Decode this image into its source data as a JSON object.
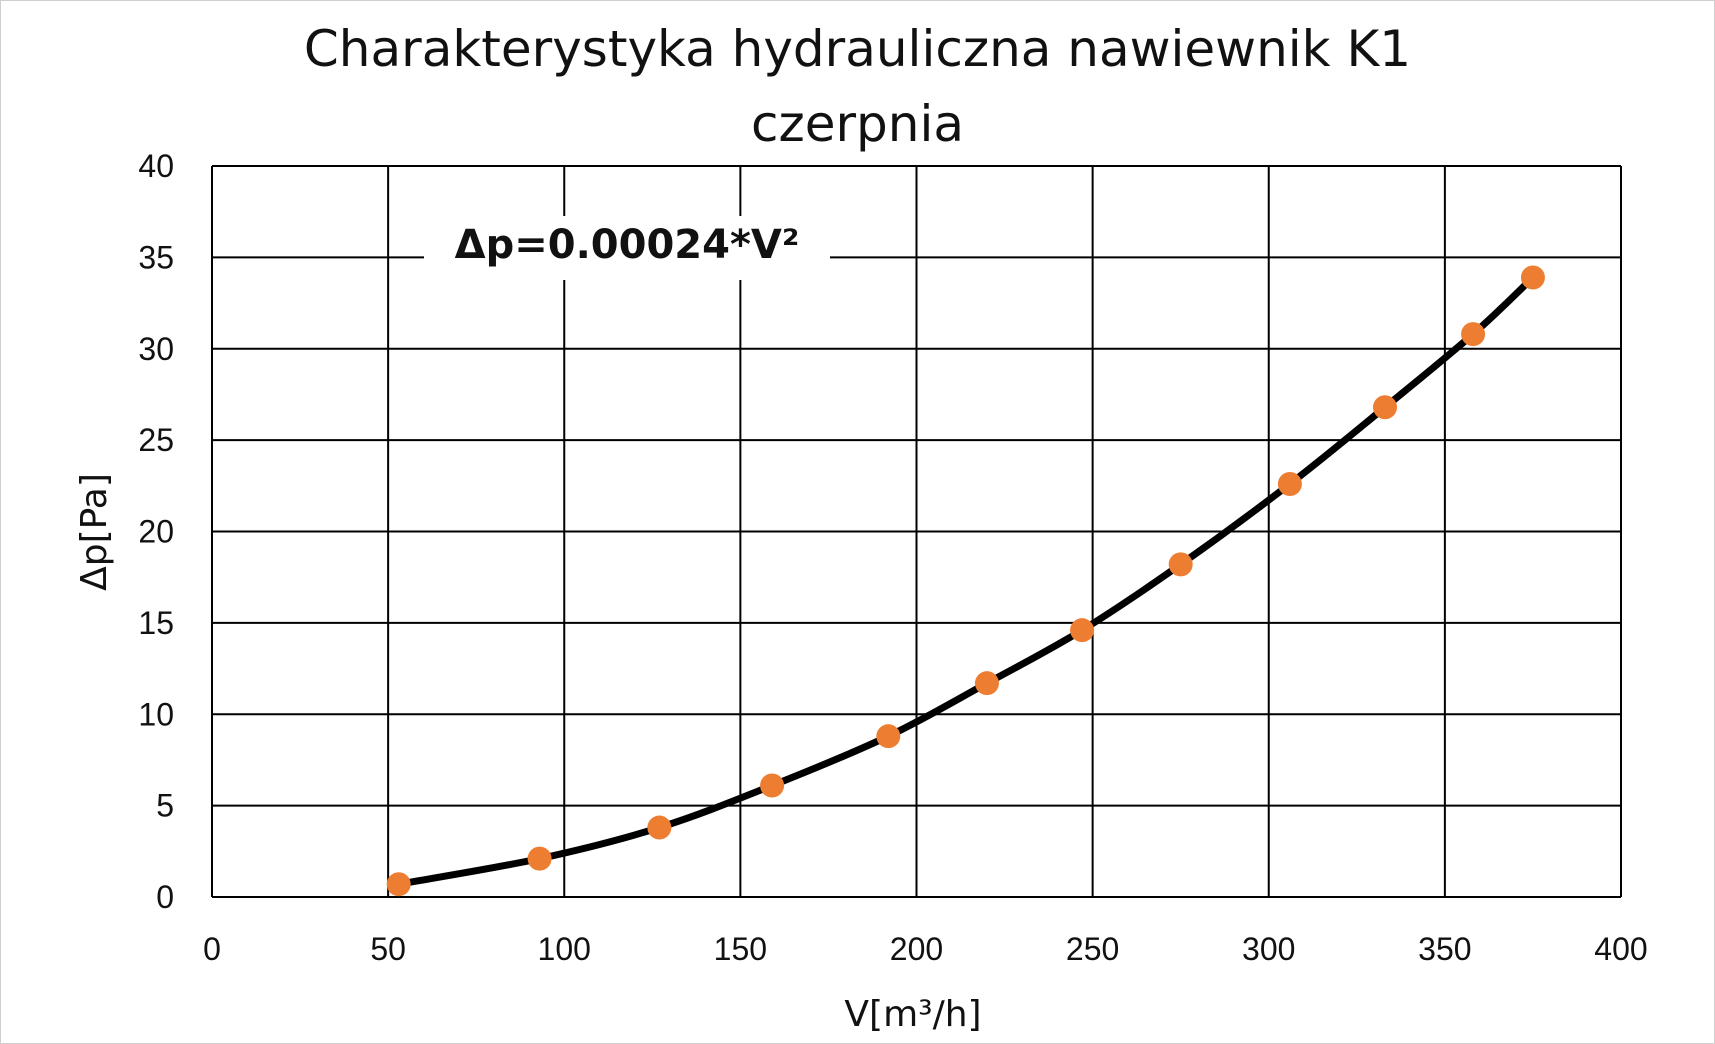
{
  "chart_data": {
    "type": "scatter",
    "title": "Charakterystyka hydrauliczna nawiewnik K1",
    "subtitle": "czerpnia",
    "xlabel": "V[m³/h]",
    "ylabel": "Δp[Pa]",
    "xlim": [
      0,
      400
    ],
    "ylim": [
      0,
      40
    ],
    "x_ticks": [
      0,
      50,
      100,
      150,
      200,
      250,
      300,
      350,
      400
    ],
    "y_ticks": [
      0,
      5,
      10,
      15,
      20,
      25,
      30,
      35,
      40
    ],
    "x_tick_labels": [
      "0",
      "50",
      "100",
      "150",
      "200",
      "250",
      "300",
      "350",
      "400"
    ],
    "y_tick_labels": [
      "0",
      "5",
      "10",
      "15",
      "20",
      "25",
      "30",
      "35",
      "40"
    ],
    "grid": true,
    "annotation": "Δp=0.00024*V²",
    "series": [
      {
        "points": [
          [
            53,
            0.7
          ],
          [
            93,
            2.1
          ],
          [
            127,
            3.8
          ],
          [
            159,
            6.1
          ],
          [
            192,
            8.8
          ],
          [
            220,
            11.7
          ],
          [
            247,
            14.6
          ],
          [
            275,
            18.2
          ],
          [
            306,
            22.6
          ],
          [
            333,
            26.8
          ],
          [
            358,
            30.8
          ],
          [
            375,
            33.9
          ]
        ],
        "color": "#ed7d31",
        "line_color": "#000000"
      }
    ]
  }
}
